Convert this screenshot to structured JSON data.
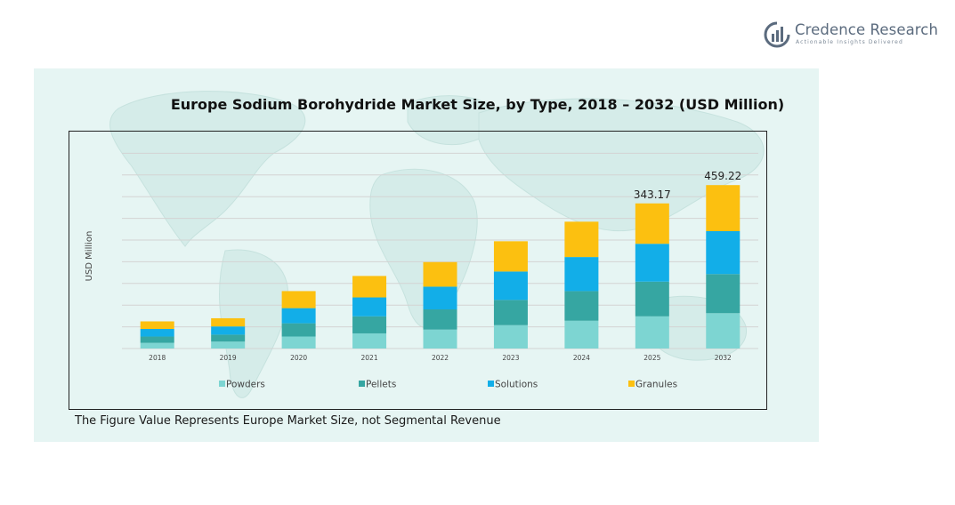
{
  "brand": {
    "name": "Credence Research",
    "tagline": "Actionable Insights Delivered",
    "icon": "credence-logo-icon"
  },
  "footnote": "The Figure Value Represents Europe Market Size, not Segmental Revenue",
  "colors": {
    "panel_bg": "#e6f5f3",
    "powders": "#7dd5d2",
    "pellets": "#36a6a2",
    "solutions": "#12aee8",
    "granules": "#fcc010"
  },
  "chart_data": {
    "type": "bar",
    "stacked": true,
    "title": "Europe Sodium Borohydride Market Size, by Type, 2018 – 2032 (USD Million)",
    "xlabel": "",
    "ylabel": "USD Million",
    "categories": [
      "2018",
      "2019",
      "2020",
      "2021",
      "2022",
      "2023",
      "2024",
      "2025",
      "2032"
    ],
    "series": [
      {
        "name": "Powders",
        "color": "#7dd5d2",
        "values": [
          9,
          11,
          19,
          24,
          30,
          37,
          44,
          51,
          56
        ]
      },
      {
        "name": "Pellets",
        "color": "#36a6a2",
        "values": [
          10,
          11,
          21,
          27,
          32,
          40,
          47,
          55,
          62
        ]
      },
      {
        "name": "Solutions",
        "color": "#12aee8",
        "values": [
          12,
          13,
          24,
          30,
          36,
          45,
          54,
          60,
          68
        ]
      },
      {
        "name": "Granules",
        "color": "#fcc010",
        "values": [
          12,
          13,
          27,
          34,
          39,
          48,
          56,
          64,
          73
        ]
      }
    ],
    "data_labels": [
      {
        "category": "2025",
        "text": "343.17"
      },
      {
        "category": "2032",
        "text": "459.22"
      }
    ],
    "ylim": [
      0,
      310
    ],
    "grid": true,
    "legend_position": "bottom"
  }
}
